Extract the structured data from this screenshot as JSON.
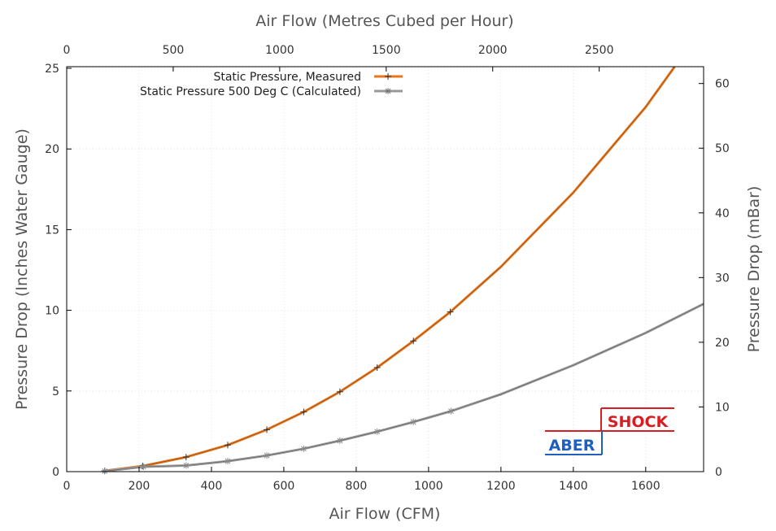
{
  "chart_data": {
    "type": "line",
    "title": "",
    "xlabel": "Air Flow (CFM)",
    "x2label": "Air Flow (Metres Cubed per Hour)",
    "ylabel": "Pressure Drop (Inches Water Gauge)",
    "y2label": "Pressure Drop (mBar)",
    "xlim": [
      0,
      1760
    ],
    "ylim": [
      0,
      25.1
    ],
    "x2lim": [
      0,
      2990
    ],
    "y2lim": [
      0,
      62.6
    ],
    "xticks": [
      "0",
      "200",
      "400",
      "600",
      "800",
      "1000",
      "1200",
      "1400",
      "1600"
    ],
    "yticks": [
      "0",
      "5",
      "10",
      "15",
      "20",
      "25"
    ],
    "x2ticks": [
      "0",
      "500",
      "1000",
      "1500",
      "2000",
      "2500"
    ],
    "y2ticks": [
      "0",
      "10",
      "20",
      "30",
      "40",
      "50",
      "60"
    ],
    "grid": true,
    "legend_position": "top-center",
    "series": [
      {
        "name": "Static Pressure, Measured",
        "color": "#e8761c",
        "marker": "plus",
        "x": [
          105,
          210,
          330,
          445,
          553,
          655,
          755,
          858,
          958,
          1060,
          1200,
          1400,
          1600,
          1680
        ],
        "values": [
          0.05,
          0.35,
          0.9,
          1.65,
          2.6,
          3.7,
          4.95,
          6.45,
          8.1,
          9.9,
          12.7,
          17.3,
          22.6,
          25.1
        ]
      },
      {
        "name": "Static Pressure 500 Deg C (Calculated)",
        "color": "#999999",
        "marker": "star",
        "x": [
          105,
          212,
          330,
          445,
          553,
          655,
          755,
          858,
          958,
          1062,
          1200,
          1400,
          1600,
          1760
        ],
        "values": [
          0.03,
          0.3,
          0.38,
          0.65,
          1.0,
          1.42,
          1.92,
          2.48,
          3.08,
          3.75,
          4.8,
          6.6,
          8.6,
          10.4
        ]
      }
    ]
  },
  "logo": {
    "top_text": "SHOCK",
    "bottom_text": "ABER",
    "top_color": "#d81e22",
    "bottom_color": "#1f5fbf"
  }
}
